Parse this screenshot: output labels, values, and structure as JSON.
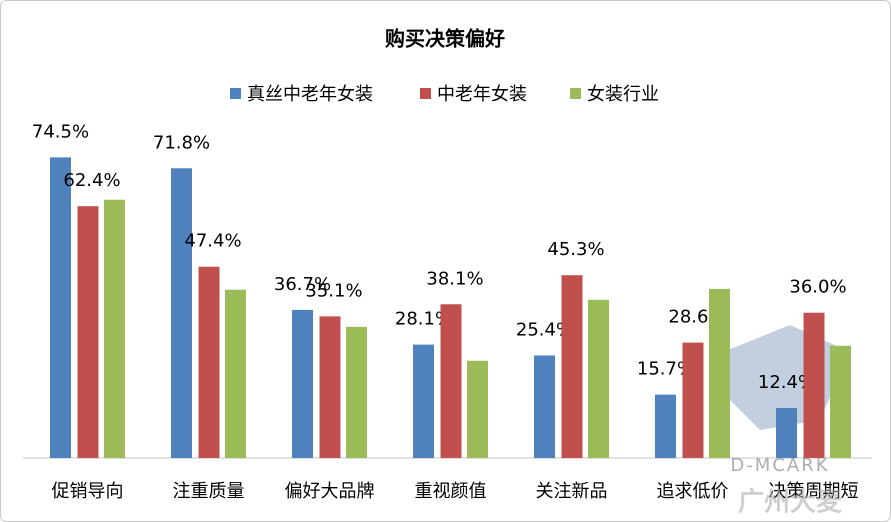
{
  "chart_data": {
    "type": "bar",
    "title": "购买决策偏好",
    "categories": [
      "促销导向",
      "注重质量",
      "偏好大品牌",
      "重视颜值",
      "关注新品",
      "追求低价",
      "决策周期短"
    ],
    "series": [
      {
        "name": "真丝中老年女装",
        "color": "#4f81bd",
        "values": [
          74.5,
          71.8,
          36.7,
          28.1,
          25.4,
          15.7,
          12.4
        ],
        "value_labels": [
          "74.5%",
          "71.8%",
          "36.7%",
          "28.1%",
          "25.4%",
          "15.7%",
          "12.4%"
        ]
      },
      {
        "name": "中老年女装",
        "color": "#c0504d",
        "values": [
          62.4,
          47.4,
          35.1,
          38.1,
          45.3,
          28.6,
          36.0
        ],
        "value_labels": [
          "62.4%",
          "47.4%",
          "35.1%",
          "38.1%",
          "45.3%",
          "28.6%",
          "36.0%"
        ]
      },
      {
        "name": "女装行业",
        "color": "#9bbb59",
        "values": [
          64.0,
          41.7,
          32.5,
          24.1,
          39.2,
          41.9,
          27.8
        ]
      }
    ],
    "ylim": [
      0,
      85
    ],
    "legend": "top",
    "watermark": [
      "D-MCARK",
      "广州大麦"
    ]
  }
}
